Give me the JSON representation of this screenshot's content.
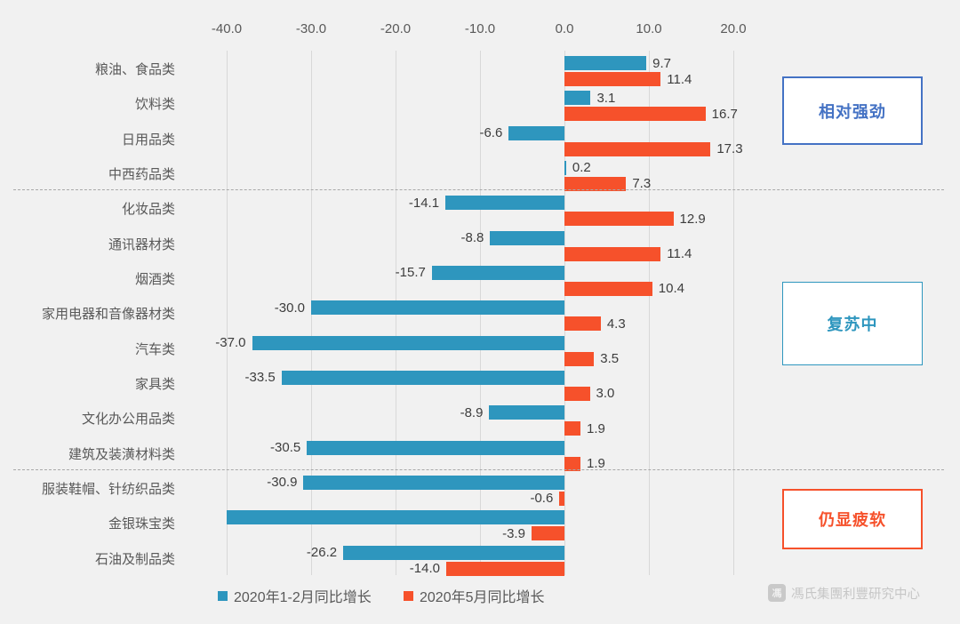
{
  "chart_data": {
    "type": "bar",
    "orientation": "horizontal",
    "title": "",
    "xlabel": "",
    "ylabel": "",
    "xlim": [
      -40,
      20
    ],
    "grid": true,
    "legend_position": "bottom",
    "x_ticks": [
      "-40.0",
      "-30.0",
      "-20.0",
      "-10.0",
      "0.0",
      "10.0",
      "20.0"
    ],
    "x_tick_values": [
      -40,
      -30,
      -20,
      -10,
      0,
      10,
      20
    ],
    "categories": [
      "粮油、食品类",
      "饮料类",
      "日用品类",
      "中西药品类",
      "化妆品类",
      "通讯器材类",
      "烟酒类",
      "家用电器和音像器材类",
      "汽车类",
      "家具类",
      "文化办公用品类",
      "建筑及装潢材料类",
      "服装鞋帽、针纺织品类",
      "金银珠宝类",
      "石油及制品类"
    ],
    "series": [
      {
        "name": "2020年1-2月同比增长",
        "color": "#2e96be",
        "values": [
          9.7,
          3.1,
          -6.6,
          0.2,
          -14.1,
          -8.8,
          -15.7,
          -30.0,
          -37.0,
          -33.5,
          -8.9,
          -30.5,
          -30.9,
          -40.0,
          -26.2
        ],
        "labels": [
          "9.7",
          "3.1",
          "-6.6",
          "0.2",
          "-14.1",
          "-8.8",
          "-15.7",
          "-30.0",
          "-37.0",
          "-33.5",
          "-8.9",
          "-30.5",
          "-30.9",
          "",
          "-26.2"
        ],
        "note": "金银珠宝类 bar is clipped at axis minimum -40 and shows no data label"
      },
      {
        "name": "2020年5月同比增长",
        "color": "#f6512b",
        "values": [
          11.4,
          16.7,
          17.3,
          7.3,
          12.9,
          11.4,
          10.4,
          4.3,
          3.5,
          3.0,
          1.9,
          1.9,
          -0.6,
          -3.9,
          -14.0
        ],
        "labels": [
          "11.4",
          "16.7",
          "17.3",
          "7.3",
          "12.9",
          "11.4",
          "10.4",
          "4.3",
          "3.5",
          "3.0",
          "1.9",
          "1.9",
          "-0.6",
          "-3.9",
          "-14.0"
        ]
      }
    ],
    "separators_after_category_index": [
      3,
      11
    ],
    "annotations": [
      {
        "label": "相对强劲",
        "color": "#4472c4",
        "group_rows": [
          0,
          3
        ]
      },
      {
        "label": "复苏中",
        "color": "#2e96be",
        "group_rows": [
          4,
          11
        ]
      },
      {
        "label": "仍显疲软",
        "color": "#f6512b",
        "group_rows": [
          12,
          14
        ]
      }
    ]
  },
  "footer": {
    "logo_text": "馮氏集團利豐研究中心",
    "logo_glyph": "馮"
  }
}
